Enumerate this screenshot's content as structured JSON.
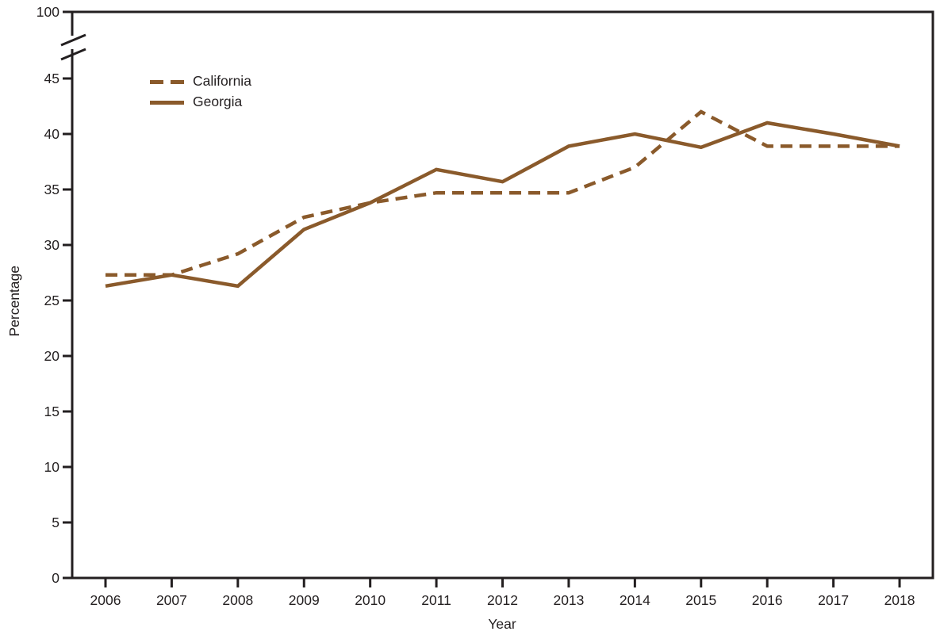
{
  "chart_data": {
    "type": "line",
    "title": "",
    "xlabel": "Year",
    "ylabel": "Percentage",
    "x": [
      2006,
      2007,
      2008,
      2009,
      2010,
      2011,
      2012,
      2013,
      2014,
      2015,
      2016,
      2017,
      2018
    ],
    "series": [
      {
        "name": "California",
        "line_style": "dashed",
        "values": [
          27.3,
          27.3,
          29.2,
          32.5,
          33.8,
          34.7,
          34.7,
          34.7,
          37.0,
          42.0,
          38.9,
          38.9,
          38.9
        ]
      },
      {
        "name": "Georgia",
        "line_style": "solid",
        "values": [
          26.3,
          27.3,
          26.3,
          31.4,
          33.8,
          36.8,
          35.7,
          38.9,
          40.0,
          38.8,
          41.0,
          40.0,
          38.9
        ]
      }
    ],
    "ylim": [
      0,
      100
    ],
    "y_ticks_lower": [
      0,
      5,
      10,
      15,
      20,
      25,
      30,
      35,
      40,
      45
    ],
    "y_tick_upper": 100,
    "y_axis_break": true,
    "grid": "off",
    "legend_position": "top-left inside plot"
  },
  "colors": {
    "line": "#8A5A2B",
    "axis": "#231F20",
    "text": "#231F20",
    "background": "#FFFFFF"
  }
}
